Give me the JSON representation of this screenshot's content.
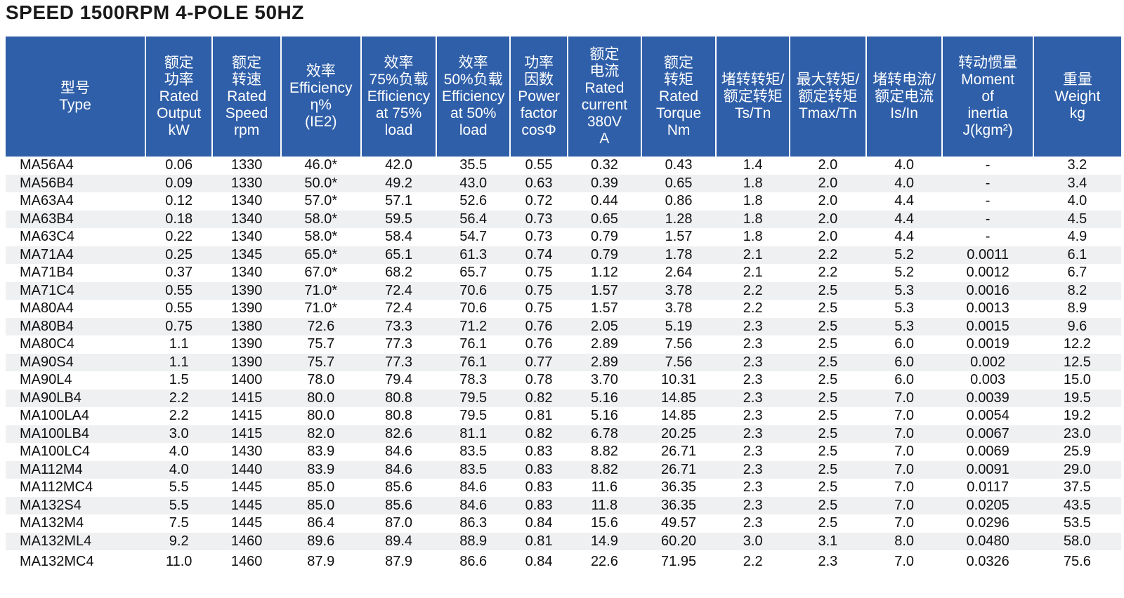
{
  "title": "SPEED 1500RPM  4-POLE 50HZ",
  "columns": [
    "型号\nType",
    "额定\n功率\nRated\nOutput\nkW",
    "额定\n转速\nRated\nSpeed\nrpm",
    "效率\nEfficiency\nη%\n(IE2)",
    "效率\n75%负载\nEfficiency\nat 75%\nload",
    "效率\n50%负载\nEfficiency\nat 50%\nload",
    "功率\n因数\nPower\nfactor\ncosΦ",
    "额定\n电流\nRated\ncurrent\n380V\nA",
    "额定\n转矩\nRated\nTorque\nNm",
    "堵转转矩/\n额定转矩\nTs/Tn",
    "最大转矩/\n额定转矩\nTmax/Tn",
    "堵转电流/\n额定电流\nIs/In",
    "转动惯量\nMoment\nof\ninertia\nJ(kgm²)",
    "重量\nWeight\nkg"
  ],
  "rows": [
    [
      "MA56A4",
      "0.06",
      "1330",
      "46.0*",
      "42.0",
      "35.5",
      "0.55",
      "0.32",
      "0.43",
      "1.4",
      "2.0",
      "4.0",
      "-",
      "3.2"
    ],
    [
      "MA56B4",
      "0.09",
      "1330",
      "50.0*",
      "49.2",
      "43.0",
      "0.63",
      "0.39",
      "0.65",
      "1.8",
      "2.0",
      "4.0",
      "-",
      "3.4"
    ],
    [
      "MA63A4",
      "0.12",
      "1340",
      "57.0*",
      "57.1",
      "52.6",
      "0.72",
      "0.44",
      "0.86",
      "1.8",
      "2.0",
      "4.4",
      "-",
      "4.0"
    ],
    [
      "MA63B4",
      "0.18",
      "1340",
      "58.0*",
      "59.5",
      "56.4",
      "0.73",
      "0.65",
      "1.28",
      "1.8",
      "2.0",
      "4.4",
      "-",
      "4.5"
    ],
    [
      "MA63C4",
      "0.22",
      "1340",
      "58.0*",
      "58.4",
      "54.7",
      "0.73",
      "0.79",
      "1.57",
      "1.8",
      "2.0",
      "4.4",
      "-",
      "4.9"
    ],
    [
      "MA71A4",
      "0.25",
      "1345",
      "65.0*",
      "65.1",
      "61.3",
      "0.74",
      "0.79",
      "1.78",
      "2.1",
      "2.2",
      "5.2",
      "0.0011",
      "6.1"
    ],
    [
      "MA71B4",
      "0.37",
      "1340",
      "67.0*",
      "68.2",
      "65.7",
      "0.75",
      "1.12",
      "2.64",
      "2.1",
      "2.2",
      "5.2",
      "0.0012",
      "6.7"
    ],
    [
      "MA71C4",
      "0.55",
      "1390",
      "71.0*",
      "72.4",
      "70.6",
      "0.75",
      "1.57",
      "3.78",
      "2.2",
      "2.5",
      "5.3",
      "0.0016",
      "8.2"
    ],
    [
      "MA80A4",
      "0.55",
      "1390",
      "71.0*",
      "72.4",
      "70.6",
      "0.75",
      "1.57",
      "3.78",
      "2.2",
      "2.5",
      "5.3",
      "0.0013",
      "8.9"
    ],
    [
      "MA80B4",
      "0.75",
      "1380",
      "72.6",
      "73.3",
      "71.2",
      "0.76",
      "2.05",
      "5.19",
      "2.3",
      "2.5",
      "5.3",
      "0.0015",
      "9.6"
    ],
    [
      "MA80C4",
      "1.1",
      "1390",
      "75.7",
      "77.3",
      "76.1",
      "0.76",
      "2.89",
      "7.56",
      "2.3",
      "2.5",
      "6.0",
      "0.0019",
      "12.2"
    ],
    [
      "MA90S4",
      "1.1",
      "1390",
      "75.7",
      "77.3",
      "76.1",
      "0.77",
      "2.89",
      "7.56",
      "2.3",
      "2.5",
      "6.0",
      "0.002",
      "12.5"
    ],
    [
      "MA90L4",
      "1.5",
      "1400",
      "78.0",
      "79.4",
      "78.3",
      "0.78",
      "3.70",
      "10.31",
      "2.3",
      "2.5",
      "6.0",
      "0.003",
      "15.0"
    ],
    [
      "MA90LB4",
      "2.2",
      "1415",
      "80.0",
      "80.8",
      "79.5",
      "0.82",
      "5.16",
      "14.85",
      "2.3",
      "2.5",
      "7.0",
      "0.0039",
      "19.5"
    ],
    [
      "MA100LA4",
      "2.2",
      "1415",
      "80.0",
      "80.8",
      "79.5",
      "0.81",
      "5.16",
      "14.85",
      "2.3",
      "2.5",
      "7.0",
      "0.0054",
      "19.2"
    ],
    [
      "MA100LB4",
      "3.0",
      "1415",
      "82.0",
      "82.6",
      "81.1",
      "0.82",
      "6.78",
      "20.25",
      "2.3",
      "2.5",
      "7.0",
      "0.0067",
      "23.0"
    ],
    [
      "MA100LC4",
      "4.0",
      "1430",
      "83.9",
      "84.6",
      "83.5",
      "0.83",
      "8.82",
      "26.71",
      "2.3",
      "2.5",
      "7.0",
      "0.0069",
      "25.9"
    ],
    [
      "MA112M4",
      "4.0",
      "1440",
      "83.9",
      "84.6",
      "83.5",
      "0.83",
      "8.82",
      "26.71",
      "2.3",
      "2.5",
      "7.0",
      "0.0091",
      "29.0"
    ],
    [
      "MA112MC4",
      "5.5",
      "1445",
      "85.0",
      "85.6",
      "84.6",
      "0.83",
      "11.6",
      "36.35",
      "2.3",
      "2.5",
      "7.0",
      "0.0117",
      "37.5"
    ],
    [
      "MA132S4",
      "5.5",
      "1445",
      "85.0",
      "85.6",
      "84.6",
      "0.83",
      "11.8",
      "36.35",
      "2.3",
      "2.5",
      "7.0",
      "0.0205",
      "43.5"
    ],
    [
      "MA132M4",
      "7.5",
      "1445",
      "86.4",
      "87.0",
      "86.3",
      "0.84",
      "15.6",
      "49.57",
      "2.3",
      "2.5",
      "7.0",
      "0.0296",
      "53.5"
    ],
    [
      "MA132ML4",
      "9.2",
      "1460",
      "89.6",
      "89.4",
      "88.9",
      "0.81",
      "14.9",
      "60.20",
      "3.0",
      "3.1",
      "8.0",
      "0.0480",
      "58.0"
    ],
    [
      "MA132MC4",
      "11.0",
      "1460",
      "87.9",
      "87.9",
      "86.6",
      "0.84",
      "22.6",
      "71.95",
      "2.2",
      "2.3",
      "7.0",
      "0.0326",
      "75.6"
    ]
  ]
}
